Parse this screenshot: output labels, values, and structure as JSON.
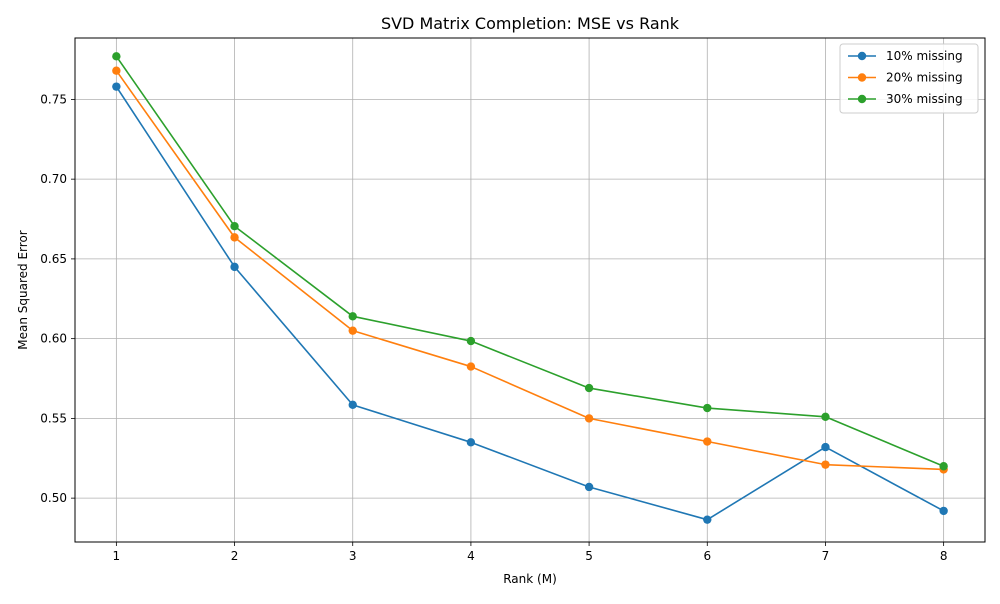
{
  "chart_data": {
    "type": "line",
    "title": "SVD Matrix Completion: MSE vs Rank",
    "xlabel": "Rank (M)",
    "ylabel": "Mean Squared Error",
    "x": [
      1,
      2,
      3,
      4,
      5,
      6,
      7,
      8
    ],
    "xticks": [
      "1",
      "2",
      "3",
      "4",
      "5",
      "6",
      "7",
      "8"
    ],
    "yticks": [
      0.5,
      0.55,
      0.6,
      0.65,
      0.7,
      0.75
    ],
    "ytick_labels": [
      "0.50",
      "0.55",
      "0.60",
      "0.65",
      "0.70",
      "0.75"
    ],
    "xlim": [
      0.65,
      8.35
    ],
    "ylim": [
      0.4725,
      0.7885
    ],
    "grid": true,
    "legend_position": "top-right",
    "series": [
      {
        "name": "10% missing",
        "color": "#1f77b4",
        "values": [
          0.758,
          0.645,
          0.5585,
          0.535,
          0.507,
          0.4865,
          0.532,
          0.492
        ]
      },
      {
        "name": "20% missing",
        "color": "#ff7f0e",
        "values": [
          0.768,
          0.6635,
          0.605,
          0.5825,
          0.55,
          0.5355,
          0.521,
          0.518
        ]
      },
      {
        "name": "30% missing",
        "color": "#2ca02c",
        "values": [
          0.777,
          0.6705,
          0.614,
          0.5985,
          0.569,
          0.5565,
          0.551,
          0.52
        ]
      }
    ]
  }
}
